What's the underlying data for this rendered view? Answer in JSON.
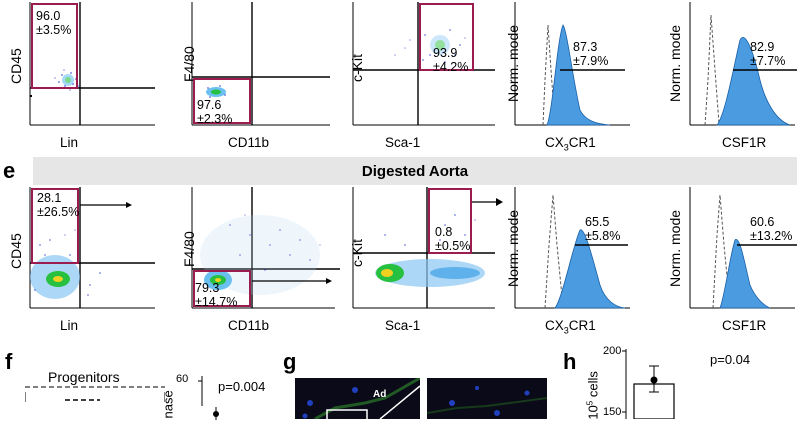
{
  "panel_e": {
    "letter": "e",
    "banner_title": "Digested Aorta"
  },
  "top_row": {
    "p1": {
      "ylabel": "CD45",
      "xlabel": "Lin",
      "gate_value": "96.0",
      "gate_sd": "±3.5%"
    },
    "p2": {
      "ylabel": "F4/80",
      "xlabel": "CD11b",
      "gate_value": "97.6",
      "gate_sd": "±2.3%"
    },
    "p3": {
      "ylabel": "c-Kit",
      "xlabel": "Sca-1",
      "gate_value": "93.9",
      "gate_sd": "±4.2%"
    },
    "p4": {
      "ylabel": "Norm. mode",
      "xlabel_main": "CX",
      "xlabel_sub": "3",
      "xlabel_tail": "CR1",
      "value": "87.3",
      "sd": "±7.9%"
    },
    "p5": {
      "ylabel": "Norm. mode",
      "xlabel": "CSF1R",
      "value": "82.9",
      "sd": "±7.7%"
    }
  },
  "bottom_row": {
    "p1": {
      "ylabel": "CD45",
      "xlabel": "Lin",
      "gate_value": "28.1",
      "gate_sd": "±26.5%"
    },
    "p2": {
      "ylabel": "F4/80",
      "xlabel": "CD11b",
      "gate_value": "79.3",
      "gate_sd": "±14.7%"
    },
    "p3": {
      "ylabel": "c-Kit",
      "xlabel": "Sca-1",
      "gate_value": "0.8",
      "gate_sd": "±0.5%"
    },
    "p4": {
      "ylabel": "Norm. mode",
      "xlabel_main": "CX",
      "xlabel_sub": "3",
      "xlabel_tail": "CR1",
      "value": "65.5",
      "sd": "±5.8%"
    },
    "p5": {
      "ylabel": "Norm. mode",
      "xlabel": "CSF1R",
      "value": "60.6",
      "sd": "±13.2%"
    }
  },
  "panel_f": {
    "letter": "f",
    "title": "Progenitors",
    "axis_tick": "60",
    "pvalue": "p=0.004",
    "ylabel_fragment": "nase"
  },
  "panel_g": {
    "letter": "g",
    "label_ad": "Ad"
  },
  "panel_h": {
    "letter": "h",
    "ylabel_main": "10",
    "ylabel_sup": "5",
    "ylabel_tail": " cells",
    "tick_200": "200",
    "tick_150": "150",
    "pvalue": "p=0.04"
  },
  "colors": {
    "gate": "#9b1c4e",
    "histogram_fill": "#4a9be0",
    "dot_plot": "#3a3ad0"
  }
}
